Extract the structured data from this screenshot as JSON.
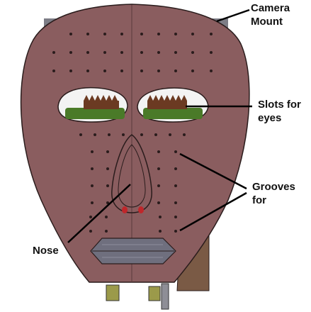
{
  "labels": {
    "camera_mount": {
      "line1": "Camera",
      "line2": "Mount"
    },
    "eye_slots": {
      "line1": "Slots for",
      "line2": "eyes"
    },
    "grooves": {
      "line1": "Grooves",
      "line2": "for"
    },
    "nose": "Nose"
  },
  "colors": {
    "face": "#8a5d5f",
    "outline": "#2a1c1c",
    "mouth": "#6f6f7e",
    "eye_green": "#4a7a28",
    "eye_brown": "#6b3a22",
    "mount": "#7a5a45",
    "leader": "#000000"
  }
}
